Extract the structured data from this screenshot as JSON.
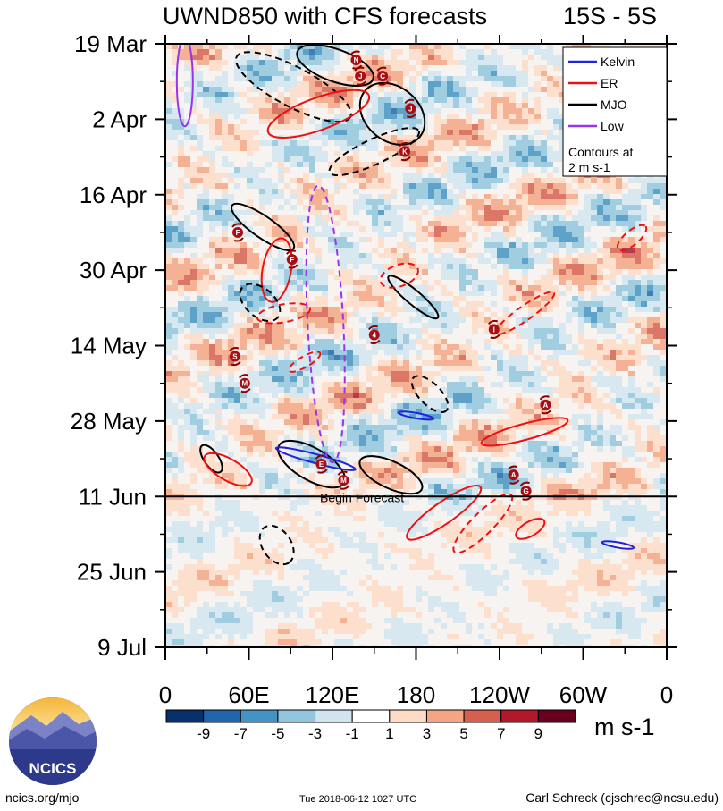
{
  "chart_data": {
    "type": "heatmap",
    "title": "UWND850 with CFS forecasts",
    "region": "15S - 5S",
    "x_ticks": [
      "0",
      "60E",
      "120E",
      "180",
      "120W",
      "60W",
      "0"
    ],
    "x_tick_lon": [
      0,
      60,
      120,
      180,
      240,
      300,
      360
    ],
    "y_ticks": [
      "19 Mar",
      "2 Apr",
      "16 Apr",
      "30 Apr",
      "14 May",
      "28 May",
      "11 Jun",
      "25 Jun",
      "9 Jul"
    ],
    "y_tick_day": [
      0,
      14,
      28,
      42,
      56,
      70,
      84,
      98,
      112
    ],
    "xlim": [
      0,
      360
    ],
    "ylim_days": [
      0,
      112
    ],
    "forecast_start_label": "Begin Forecast",
    "forecast_start_day": 84,
    "colorbar": {
      "labels": [
        "-9",
        "-7",
        "-5",
        "-3",
        "-1",
        "1",
        "3",
        "5",
        "7",
        "9"
      ],
      "colors": [
        "#08306b",
        "#2166ac",
        "#4393c3",
        "#92c5de",
        "#d1e5f0",
        "#ffffff",
        "#fddbc7",
        "#f4a582",
        "#d6604d",
        "#b2182b",
        "#67001f"
      ],
      "units": "m s-1"
    },
    "legend": {
      "position": "top-right",
      "entries": [
        {
          "name": "Kelvin",
          "color": "#2222dd"
        },
        {
          "name": "ER",
          "color": "#ee1111"
        },
        {
          "name": "MJO",
          "color": "#000000"
        },
        {
          "name": "Low",
          "color": "#9933ee"
        }
      ],
      "note_line1": "Contours at",
      "note_line2": "2 m s-1"
    },
    "storms": [
      {
        "letter": "N",
        "lon": 137,
        "day": 3
      },
      {
        "letter": "J",
        "lon": 140,
        "day": 6
      },
      {
        "letter": "C",
        "lon": 156,
        "day": 6
      },
      {
        "letter": "J",
        "lon": 176,
        "day": 12
      },
      {
        "letter": "K",
        "lon": 172,
        "day": 20
      },
      {
        "letter": "F",
        "lon": 52,
        "day": 35
      },
      {
        "letter": "F",
        "lon": 91,
        "day": 40
      },
      {
        "letter": "4",
        "lon": 150,
        "day": 54
      },
      {
        "letter": "I",
        "lon": 236,
        "day": 53
      },
      {
        "letter": "S",
        "lon": 50,
        "day": 58
      },
      {
        "letter": "M",
        "lon": 57,
        "day": 63
      },
      {
        "letter": "A",
        "lon": 273,
        "day": 67
      },
      {
        "letter": "E",
        "lon": 112,
        "day": 78
      },
      {
        "letter": "M",
        "lon": 128,
        "day": 81
      },
      {
        "letter": "A",
        "lon": 250,
        "day": 80
      },
      {
        "letter": "G",
        "lon": 259,
        "day": 83
      }
    ]
  },
  "footer": {
    "logo_text": "NCICS",
    "url": "ncics.org/mjo",
    "timestamp": "Tue 2018-06-12 1027 UTC",
    "author": "Carl Schreck (cjschrec@ncsu.edu)"
  }
}
